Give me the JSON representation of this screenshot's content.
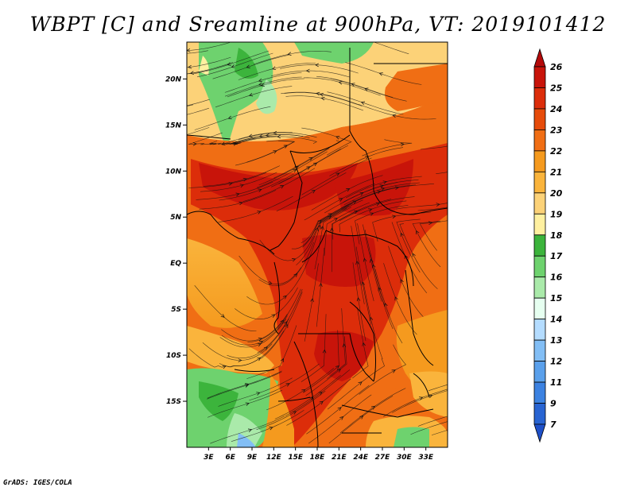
{
  "title": "WBPT [C] and Sreamline at 900hPa, VT: 2019101412",
  "credit": "GrADS: IGES/COLA",
  "map": {
    "lon_range": [
      0,
      36
    ],
    "lat_range": [
      -20,
      24
    ],
    "lat_ticks": [
      {
        "value": 20,
        "label": "20N"
      },
      {
        "value": 15,
        "label": "15N"
      },
      {
        "value": 10,
        "label": "10N"
      },
      {
        "value": 5,
        "label": "5N"
      },
      {
        "value": 0,
        "label": "EQ"
      },
      {
        "value": -5,
        "label": "5S"
      },
      {
        "value": -10,
        "label": "10S"
      },
      {
        "value": -15,
        "label": "15S"
      }
    ],
    "lon_ticks": [
      {
        "value": 3,
        "label": "3E"
      },
      {
        "value": 6,
        "label": "6E"
      },
      {
        "value": 9,
        "label": "9E"
      },
      {
        "value": 12,
        "label": "12E"
      },
      {
        "value": 15,
        "label": "15E"
      },
      {
        "value": 18,
        "label": "18E"
      },
      {
        "value": 21,
        "label": "21E"
      },
      {
        "value": 24,
        "label": "24E"
      },
      {
        "value": 27,
        "label": "27E"
      },
      {
        "value": 30,
        "label": "30E"
      },
      {
        "value": 33,
        "label": "33E"
      }
    ]
  },
  "colorbar": {
    "levels": [
      {
        "label": "26",
        "color": "#b40a0a"
      },
      {
        "label": "25",
        "color": "#c8140a"
      },
      {
        "label": "24",
        "color": "#dc2d0a"
      },
      {
        "label": "23",
        "color": "#e64b0a"
      },
      {
        "label": "22",
        "color": "#f06e14"
      },
      {
        "label": "21",
        "color": "#f59a1e"
      },
      {
        "label": "20",
        "color": "#fab43c"
      },
      {
        "label": "19",
        "color": "#fcd278"
      },
      {
        "label": "18",
        "color": "#fff0a0"
      },
      {
        "label": "17",
        "color": "#3cb43c"
      },
      {
        "label": "16",
        "color": "#6ed26e"
      },
      {
        "label": "15",
        "color": "#aaeaaa"
      },
      {
        "label": "14",
        "color": "#e6fff0"
      },
      {
        "label": "13",
        "color": "#b4dcff"
      },
      {
        "label": "12",
        "color": "#82bef5"
      },
      {
        "label": "11",
        "color": "#5aa0eb"
      },
      {
        "label": "9",
        "color": "#3c82e1"
      },
      {
        "label": "7",
        "color": "#2864d2"
      }
    ],
    "bottom_color": "#1e50c8"
  }
}
